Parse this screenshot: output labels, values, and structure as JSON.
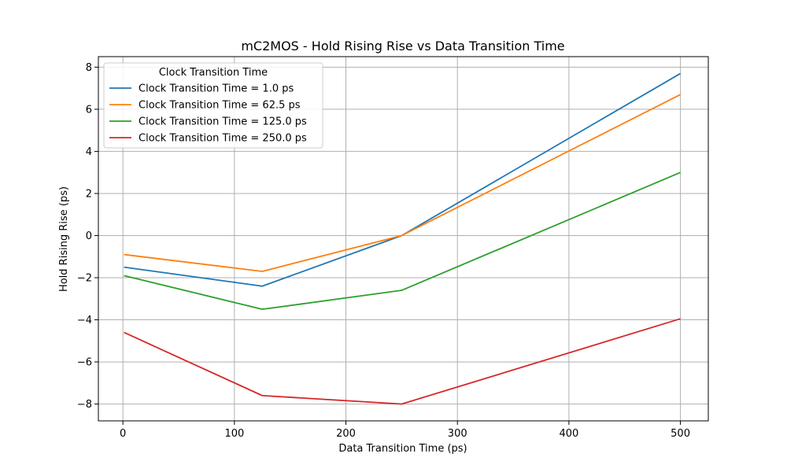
{
  "chart_data": {
    "type": "line",
    "title": "mC2MOS - Hold Rising Rise vs Data Transition Time",
    "xlabel": "Data Transition Time (ps)",
    "ylabel": "Hold Rising Rise (ps)",
    "xlim": [
      -22,
      525
    ],
    "ylim": [
      -8.8,
      8.5
    ],
    "xticks": [
      0,
      100,
      200,
      300,
      400,
      500
    ],
    "yticks": [
      -8,
      -6,
      -4,
      -2,
      0,
      2,
      4,
      6,
      8
    ],
    "grid": true,
    "legend": {
      "title": "Clock Transition Time",
      "placement": "top-left"
    },
    "x": [
      1.0,
      125.0,
      250.0,
      500.0
    ],
    "series": [
      {
        "name": "Clock Transition Time = 1.0 ps",
        "color": "#1f77b4",
        "values": [
          -1.5,
          -2.4,
          0.0,
          7.7
        ]
      },
      {
        "name": "Clock Transition Time = 62.5 ps",
        "color": "#ff7f0e",
        "values": [
          -0.9,
          -1.7,
          0.0,
          6.7
        ]
      },
      {
        "name": "Clock Transition Time = 125.0 ps",
        "color": "#2ca02c",
        "values": [
          -1.9,
          -3.5,
          -2.6,
          3.0
        ]
      },
      {
        "name": "Clock Transition Time = 250.0 ps",
        "color": "#d62728",
        "values": [
          -4.6,
          -7.6,
          -8.0,
          -3.95
        ]
      }
    ]
  }
}
